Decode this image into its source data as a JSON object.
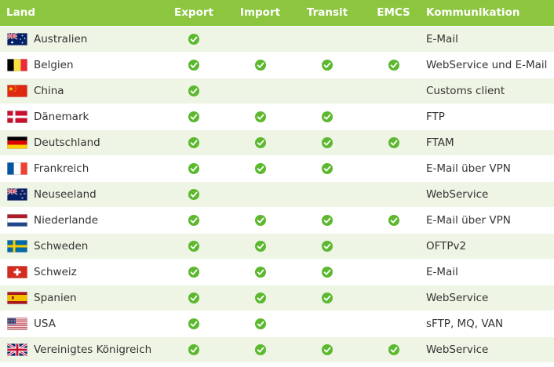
{
  "header": {
    "land": "Land",
    "export": "Export",
    "import": "Import",
    "transit": "Transit",
    "emcs": "EMCS",
    "kommunikation": "Kommunikation"
  },
  "colors": {
    "header_bg": "#8cc63f",
    "stripe_bg": "#eef5e4",
    "check": "#5cb82e"
  },
  "rows": [
    {
      "flag": "flag-australia-icon",
      "name": "Australien",
      "export": true,
      "import": false,
      "transit": false,
      "emcs": false,
      "comm": "E-Mail"
    },
    {
      "flag": "flag-belgium-icon",
      "name": "Belgien",
      "export": true,
      "import": true,
      "transit": true,
      "emcs": true,
      "comm": "WebService und E-Mail"
    },
    {
      "flag": "flag-china-icon",
      "name": "China",
      "export": true,
      "import": false,
      "transit": false,
      "emcs": false,
      "comm": "Customs client"
    },
    {
      "flag": "flag-denmark-icon",
      "name": "Dänemark",
      "export": true,
      "import": true,
      "transit": true,
      "emcs": false,
      "comm": "FTP"
    },
    {
      "flag": "flag-germany-icon",
      "name": "Deutschland",
      "export": true,
      "import": true,
      "transit": true,
      "emcs": true,
      "comm": "FTAM"
    },
    {
      "flag": "flag-france-icon",
      "name": "Frankreich",
      "export": true,
      "import": true,
      "transit": true,
      "emcs": false,
      "comm": "E-Mail über VPN"
    },
    {
      "flag": "flag-new-zealand-icon",
      "name": "Neuseeland",
      "export": true,
      "import": false,
      "transit": false,
      "emcs": false,
      "comm": "WebService"
    },
    {
      "flag": "flag-netherlands-icon",
      "name": "Niederlande",
      "export": true,
      "import": true,
      "transit": true,
      "emcs": true,
      "comm": "E-Mail über VPN"
    },
    {
      "flag": "flag-sweden-icon",
      "name": "Schweden",
      "export": true,
      "import": true,
      "transit": true,
      "emcs": false,
      "comm": "OFTPv2"
    },
    {
      "flag": "flag-switzerland-icon",
      "name": "Schweiz",
      "export": true,
      "import": true,
      "transit": true,
      "emcs": false,
      "comm": "E-Mail"
    },
    {
      "flag": "flag-spain-icon",
      "name": "Spanien",
      "export": true,
      "import": true,
      "transit": true,
      "emcs": false,
      "comm": "WebService"
    },
    {
      "flag": "flag-usa-icon",
      "name": "USA",
      "export": true,
      "import": true,
      "transit": false,
      "emcs": false,
      "comm": "sFTP, MQ, VAN"
    },
    {
      "flag": "flag-united-kingdom-icon",
      "name": "Vereinigtes Königreich",
      "export": true,
      "import": true,
      "transit": true,
      "emcs": true,
      "comm": "WebService"
    }
  ]
}
